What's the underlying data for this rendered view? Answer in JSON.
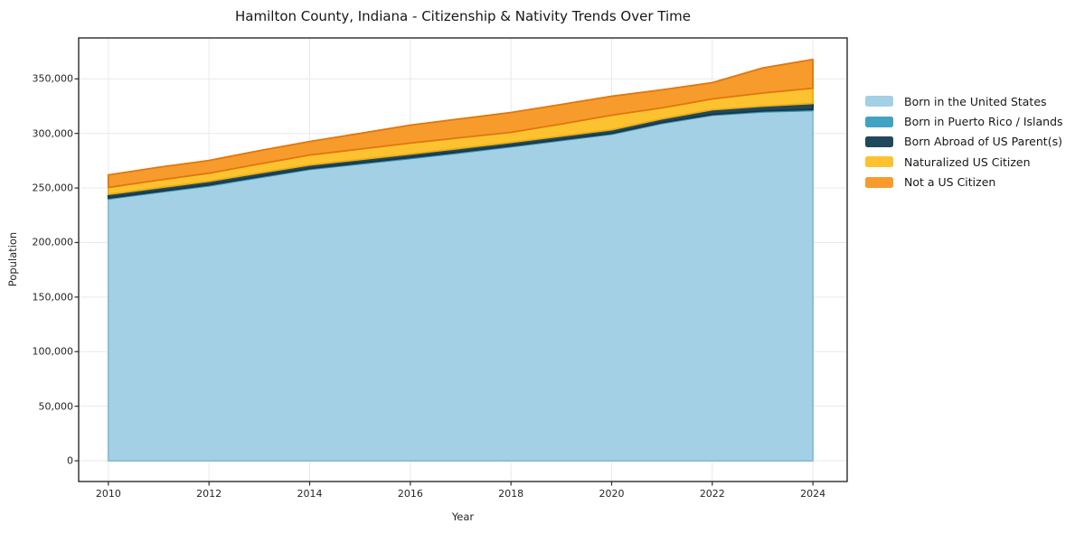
{
  "title": "Hamilton County, Indiana - Citizenship & Nativity Trends Over Time",
  "chart_data": {
    "type": "area",
    "stacked": true,
    "title": "Hamilton County, Indiana - Citizenship & Nativity Trends Over Time",
    "xlabel": "Year",
    "ylabel": "Population",
    "x": [
      2010,
      2011,
      2012,
      2013,
      2014,
      2015,
      2016,
      2017,
      2018,
      2019,
      2020,
      2021,
      2022,
      2023,
      2024
    ],
    "series": [
      {
        "name": "Born in the United States",
        "color": "#a3d0e4",
        "edge_color": "#86bdd8",
        "values": [
          240000,
          246000,
          252000,
          259500,
          267000,
          272000,
          277000,
          282300,
          287700,
          293500,
          299300,
          309200,
          316700,
          319800,
          321000
        ]
      },
      {
        "name": "Born in Puerto Rico / Islands",
        "color": "#41a3c2",
        "edge_color": "#358fad",
        "values": [
          900,
          900,
          900,
          900,
          900,
          900,
          900,
          900,
          900,
          900,
          800,
          800,
          800,
          900,
          1000
        ]
      },
      {
        "name": "Born Abroad of US Parent(s)",
        "color": "#20495c",
        "edge_color": "#16374a",
        "values": [
          3300,
          3300,
          3300,
          3300,
          3200,
          3200,
          3200,
          3200,
          3200,
          3200,
          3300,
          3400,
          4200,
          4300,
          5500
        ]
      },
      {
        "name": "Naturalized US Citizen",
        "color": "#fdc230",
        "edge_color": "#eead12",
        "values": [
          6300,
          7000,
          7400,
          8300,
          9100,
          9600,
          10000,
          9700,
          9200,
          11000,
          13300,
          10000,
          9900,
          12000,
          14000
        ]
      },
      {
        "name": "Not a US Citizen",
        "color": "#f89b2d",
        "edge_color": "#e0770e",
        "values": [
          11500,
          11800,
          11600,
          12200,
          12400,
          14300,
          16500,
          17300,
          18200,
          18000,
          17400,
          16600,
          14900,
          23000,
          26300
        ]
      }
    ],
    "xticks": [
      2010,
      2012,
      2014,
      2016,
      2018,
      2020,
      2022,
      2024
    ],
    "yticks": [
      0,
      50000,
      100000,
      150000,
      200000,
      250000,
      300000,
      350000
    ],
    "xlim": [
      2009.41,
      2024.68
    ],
    "ylim": [
      -19000,
      387500
    ],
    "grid": true,
    "grid_color": "#e9e9e9",
    "axis_color": "#2b2b2b",
    "legend_position": "right"
  }
}
